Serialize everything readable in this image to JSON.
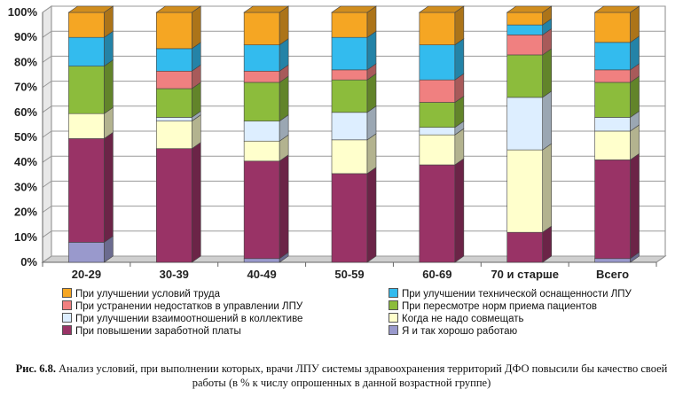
{
  "chart_data": {
    "type": "bar",
    "stacked": true,
    "categories": [
      "20-29",
      "30-39",
      "40-49",
      "50-59",
      "60-69",
      "70 и старше",
      "Всего"
    ],
    "yticks": [
      "0%",
      "10%",
      "20%",
      "30%",
      "40%",
      "50%",
      "60%",
      "70%",
      "80%",
      "90%",
      "100%"
    ],
    "ylim": [
      0,
      100
    ],
    "series": [
      {
        "name": "Я и так хорошо работаю",
        "color": "#9999cc",
        "values": [
          8,
          0,
          1.5,
          0,
          0,
          0,
          1.5
        ]
      },
      {
        "name": "При повышении заработной платы",
        "color": "#993366",
        "values": [
          41.5,
          45.5,
          39,
          35.5,
          39,
          12,
          39.5
        ]
      },
      {
        "name": "Когда не надо совмещать",
        "color": "#ffffcc",
        "values": [
          10,
          11,
          8,
          13.5,
          12,
          33,
          11.5
        ]
      },
      {
        "name": "При улучшении взаимоотношений в коллективе",
        "color": "#ddeeff",
        "values": [
          0,
          1.5,
          8,
          11,
          3,
          21,
          5.5
        ]
      },
      {
        "name": "При пересмотре норм приема пациентов",
        "color": "#8cbc3c",
        "values": [
          19,
          11.5,
          15.5,
          13,
          10,
          17,
          14
        ]
      },
      {
        "name": "При устранении недостатков в управлении ЛПУ",
        "color": "#f08080",
        "values": [
          0,
          7,
          4.5,
          4,
          9,
          8,
          5
        ]
      },
      {
        "name": "При улучшении технической оснащенности ЛПУ",
        "color": "#33bbee",
        "values": [
          11.5,
          9,
          10.5,
          13,
          14,
          4,
          11
        ]
      },
      {
        "name": "При улучшении условий труда",
        "color": "#f5a623",
        "values": [
          10,
          14.5,
          13,
          10,
          13,
          5,
          12
        ]
      }
    ],
    "legend_order": [
      7,
      6,
      5,
      4,
      3,
      2,
      1,
      0
    ]
  },
  "caption": {
    "label": "Рис. 6.8.",
    "text": "Анализ условий, при выполнении которых, врачи ЛПУ системы здравоохранения территорий ДФО повысили бы качество своей работы (в % к числу опрошенных в данной возрастной группе)"
  }
}
